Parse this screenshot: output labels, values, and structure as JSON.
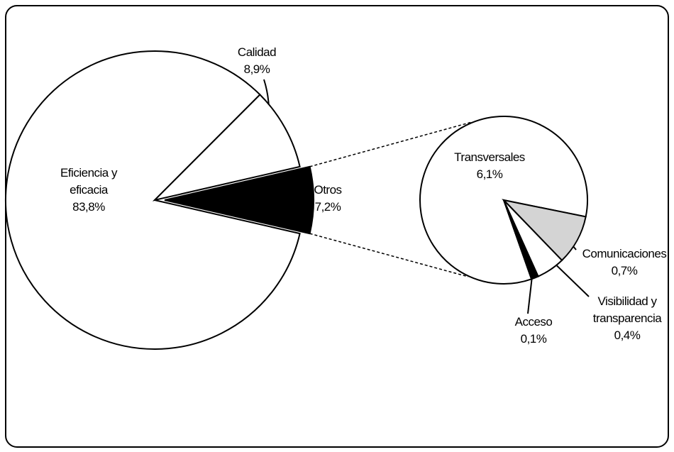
{
  "chart_data": {
    "type": "pie-of-pie",
    "categories": [
      "Eficiencia y eficacia",
      "Calidad",
      "Otros"
    ],
    "values": [
      83.8,
      8.9,
      7.2
    ],
    "value_labels": [
      "83,8%",
      "8,9%",
      "7,2%"
    ],
    "colors": [
      "#ffffff",
      "#ffffff",
      "#000000"
    ],
    "secondary": {
      "categories": [
        "Transversales",
        "Comunicaciones",
        "Visibilidad y transparencia",
        "Acceso"
      ],
      "values": [
        6.1,
        0.7,
        0.4,
        0.1
      ],
      "value_labels": [
        "6,1%",
        "0,7%",
        "0,4%",
        "0,1%"
      ],
      "colors": [
        "#ffffff",
        "#d4d4d4",
        "#ffffff",
        "#000000"
      ]
    }
  }
}
